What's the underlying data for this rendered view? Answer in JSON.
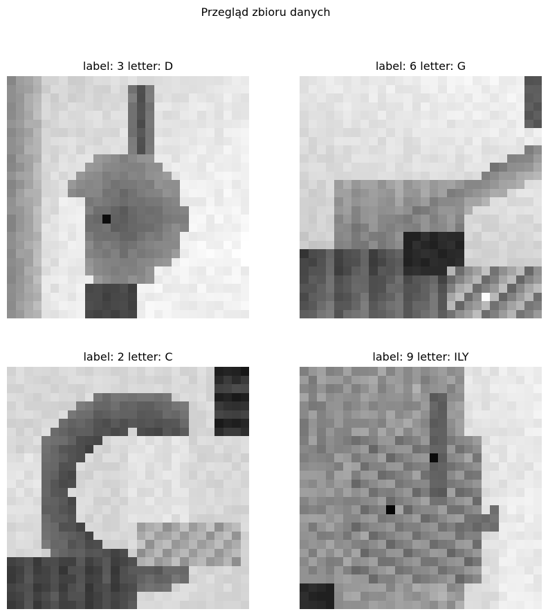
{
  "figure": {
    "title": "Przegląd zbioru danych"
  },
  "panels": [
    {
      "title": "label: 3  letter: D",
      "label": 3,
      "letter": "D",
      "image": "grayscale 28x28 hand sign image (index finger pointing up)"
    },
    {
      "title": "label: 6  letter: G",
      "label": 6,
      "letter": "G",
      "image": "grayscale 28x28 hand sign image (index finger pointing sideways)"
    },
    {
      "title": "label: 2  letter: C",
      "label": 2,
      "letter": "C",
      "image": "grayscale 28x28 hand sign image (hand curved into C shape)"
    },
    {
      "title": "label: 9  letter: ILY",
      "label": 9,
      "letter": "ILY",
      "image": "grayscale 28x28 hand sign image (I-love-you sign)"
    }
  ]
}
